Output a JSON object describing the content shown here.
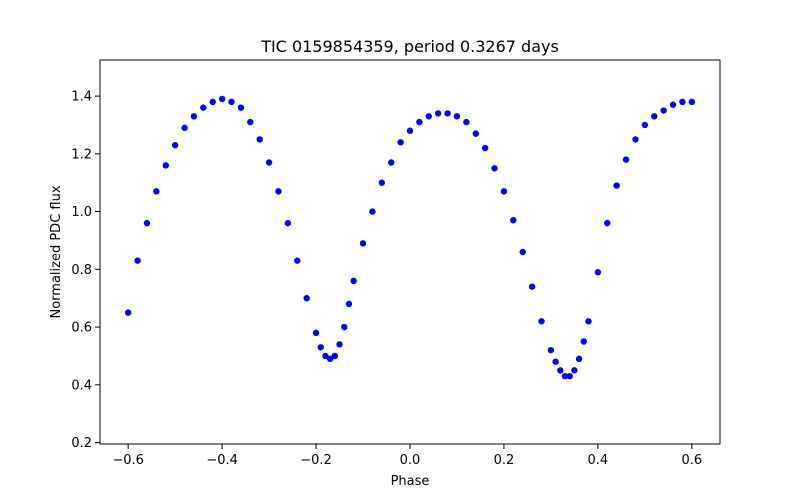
{
  "chart_data": {
    "type": "scatter",
    "title": "TIC 0159854359, period 0.3267 days",
    "xlabel": "Phase",
    "ylabel": "Normalized PDC flux",
    "xlim": [
      -0.66,
      0.66
    ],
    "ylim": [
      0.195,
      1.525
    ],
    "grid": false,
    "legend": "none",
    "xticks": [
      -0.6,
      -0.4,
      -0.2,
      0.0,
      0.2,
      0.4,
      0.6
    ],
    "xtick_labels": [
      "−0.6",
      "−0.4",
      "−0.2",
      "0.0",
      "0.2",
      "0.4",
      "0.6"
    ],
    "yticks": [
      0.2,
      0.4,
      0.6,
      0.8,
      1.0,
      1.2,
      1.4
    ],
    "ytick_labels": [
      "0.2",
      "0.4",
      "0.6",
      "0.8",
      "1.0",
      "1.2",
      "1.4"
    ],
    "series": [
      {
        "color": "#0000ff",
        "x": [
          -0.6,
          -0.58,
          -0.56,
          -0.54,
          -0.52,
          -0.5,
          -0.48,
          -0.46,
          -0.44,
          -0.42,
          -0.4,
          -0.38,
          -0.36,
          -0.34,
          -0.32,
          -0.3,
          -0.28,
          -0.26,
          -0.24,
          -0.22,
          -0.2,
          -0.19,
          -0.18,
          -0.17,
          -0.16,
          -0.15,
          -0.14,
          -0.13,
          -0.12,
          -0.1,
          -0.08,
          -0.06,
          -0.04,
          -0.02,
          0.0,
          0.02,
          0.04,
          0.06,
          0.08,
          0.1,
          0.12,
          0.14,
          0.16,
          0.18,
          0.2,
          0.22,
          0.24,
          0.26,
          0.28,
          0.3,
          0.31,
          0.32,
          0.33,
          0.34,
          0.35,
          0.36,
          0.37,
          0.38,
          0.4,
          0.42,
          0.44,
          0.46,
          0.48,
          0.5,
          0.52,
          0.54,
          0.56,
          0.58,
          0.6
        ],
        "y": [
          0.65,
          0.83,
          0.96,
          1.07,
          1.16,
          1.23,
          1.29,
          1.33,
          1.36,
          1.38,
          1.39,
          1.38,
          1.36,
          1.31,
          1.25,
          1.17,
          1.07,
          0.96,
          0.83,
          0.7,
          0.58,
          0.53,
          0.5,
          0.49,
          0.5,
          0.54,
          0.6,
          0.68,
          0.76,
          0.89,
          1.0,
          1.1,
          1.17,
          1.24,
          1.28,
          1.31,
          1.33,
          1.34,
          1.34,
          1.33,
          1.31,
          1.27,
          1.22,
          1.15,
          1.07,
          0.97,
          0.86,
          0.74,
          0.62,
          0.52,
          0.48,
          0.45,
          0.43,
          0.43,
          0.45,
          0.49,
          0.55,
          0.62,
          0.79,
          0.96,
          1.09,
          1.18,
          1.25,
          1.3,
          1.33,
          1.35,
          1.37,
          1.38,
          1.38
        ]
      }
    ]
  }
}
